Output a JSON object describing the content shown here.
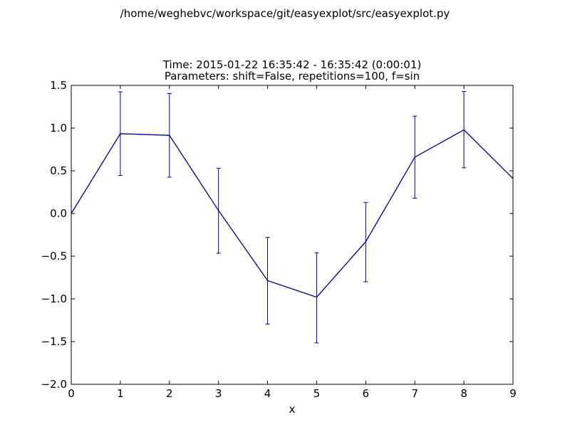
{
  "window": {
    "suptitle": "/home/weghebvc/workspace/git/easyexplot/src/easyexplot.py"
  },
  "chart_data": {
    "type": "line",
    "title_line1": "Time: 2015-01-22 16:35:42 - 16:35:42 (0:00:01)",
    "title_line2": "Parameters: shift=False, repetitions=100, f=sin",
    "xlabel": "x",
    "ylabel": "",
    "xlim": [
      0,
      9
    ],
    "ylim": [
      -2.0,
      1.5
    ],
    "xticks": [
      0,
      1,
      2,
      3,
      4,
      5,
      6,
      7,
      8,
      9
    ],
    "xtick_labels": [
      "0",
      "1",
      "2",
      "3",
      "4",
      "5",
      "6",
      "7",
      "8",
      "9"
    ],
    "yticks": [
      -2.0,
      -1.5,
      -1.0,
      -0.5,
      0.0,
      0.5,
      1.0,
      1.5
    ],
    "ytick_labels": [
      "−2.0",
      "−1.5",
      "−1.0",
      "−0.5",
      "0.0",
      "0.5",
      "1.0",
      "1.5"
    ],
    "grid": false,
    "legend": "none",
    "series": [
      {
        "color": "#000080",
        "x": [
          0,
          1,
          2,
          3,
          4,
          5,
          6,
          7,
          8,
          9
        ],
        "y": [
          0.0,
          0.935,
          0.915,
          0.035,
          -0.785,
          -0.98,
          -0.33,
          0.66,
          0.98,
          0.41
        ],
        "yerr_upper": [
          null,
          1.425,
          1.405,
          0.53,
          -0.28,
          -0.46,
          0.13,
          1.14,
          1.43,
          null
        ],
        "yerr_lower": [
          null,
          0.445,
          0.425,
          -0.465,
          -1.295,
          -1.515,
          -0.8,
          0.18,
          0.535,
          null
        ]
      }
    ]
  }
}
